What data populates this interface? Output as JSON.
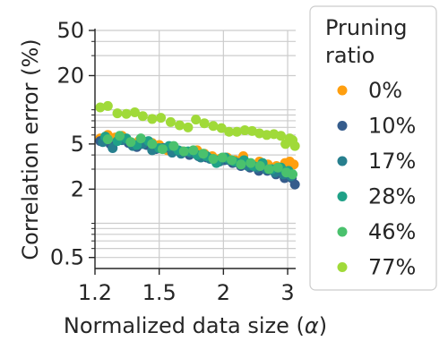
{
  "chart_data": {
    "type": "scatter",
    "xlabel": "Normalized data size (",
    "xlabel_symbol": "α",
    "xlabel_close": ")",
    "ylabel": "Correlation error (%)",
    "x_scale": "reciprocal",
    "y_scale": "log",
    "xlim": [
      1.2,
      3.2
    ],
    "ylim": [
      0.4,
      50
    ],
    "x_ticks": [
      1.2,
      1.5,
      2,
      3
    ],
    "x_tick_labels": [
      "1.2",
      "1.5",
      "2",
      "3"
    ],
    "y_ticks": [
      0.5,
      2,
      5,
      20,
      50
    ],
    "y_tick_labels": [
      "0.5",
      "2",
      "5",
      "20",
      "50"
    ],
    "y_minor_ticks": [
      0.6,
      0.7,
      0.8,
      0.9,
      1,
      3,
      4,
      6,
      7,
      8,
      9,
      10,
      30,
      40
    ],
    "grid": true,
    "legend": {
      "title_line1": "Pruning",
      "title_line2": "ratio",
      "placement": "outside-right",
      "entries": [
        "0%",
        "10%",
        "17%",
        "28%",
        "46%",
        "77%"
      ]
    },
    "series": [
      {
        "name": "0%",
        "color": "#ff9f0f",
        "x": [
          1.22,
          1.25,
          1.28,
          1.31,
          1.35,
          1.39,
          1.42,
          1.46,
          1.5,
          1.55,
          1.6,
          1.65,
          1.7,
          1.76,
          1.82,
          1.89,
          1.96,
          2.04,
          2.13,
          2.23,
          2.34,
          2.46,
          2.6,
          2.76,
          2.94,
          3.05,
          3.15
        ],
        "y": [
          5.6,
          6.0,
          5.7,
          5.9,
          5.2,
          5.3,
          5.0,
          5.1,
          4.9,
          4.4,
          4.5,
          4.3,
          4.2,
          4.4,
          4.1,
          3.9,
          3.7,
          3.8,
          3.6,
          3.9,
          3.3,
          3.5,
          3.3,
          3.2,
          3.4,
          3.5,
          3.3
        ]
      },
      {
        "name": "10%",
        "color": "#355c8c",
        "x": [
          1.22,
          1.26,
          1.3,
          1.34,
          1.38,
          1.43,
          1.48,
          1.53,
          1.58,
          1.64,
          1.7,
          1.77,
          1.84,
          1.92,
          2.01,
          2.1,
          2.2,
          2.32,
          2.45,
          2.59,
          2.75,
          2.93,
          3.1,
          3.18
        ],
        "y": [
          5.3,
          5.0,
          5.5,
          5.1,
          4.7,
          4.9,
          4.5,
          4.6,
          4.2,
          4.3,
          4.0,
          3.9,
          3.8,
          3.6,
          3.6,
          3.4,
          3.2,
          3.1,
          2.9,
          2.9,
          2.7,
          2.5,
          2.5,
          2.2
        ]
      },
      {
        "name": "17%",
        "color": "#277f8e",
        "x": [
          1.23,
          1.27,
          1.31,
          1.36,
          1.41,
          1.46,
          1.52,
          1.58,
          1.64,
          1.71,
          1.79,
          1.87,
          1.96,
          2.06,
          2.17,
          2.29,
          2.42,
          2.57,
          2.73,
          2.91,
          3.08
        ],
        "y": [
          5.2,
          4.6,
          5.4,
          4.8,
          5.0,
          4.4,
          4.6,
          4.2,
          4.1,
          4.2,
          3.8,
          3.7,
          3.5,
          3.6,
          3.4,
          3.2,
          3.1,
          3.0,
          2.8,
          2.7,
          2.6
        ]
      },
      {
        "name": "28%",
        "color": "#1fa187",
        "x": [
          1.24,
          1.29,
          1.33,
          1.38,
          1.44,
          1.5,
          1.56,
          1.62,
          1.69,
          1.76,
          1.84,
          1.93,
          2.02,
          2.12,
          2.24,
          2.37,
          2.51,
          2.67,
          2.85,
          3.02
        ],
        "y": [
          5.8,
          5.3,
          5.6,
          4.9,
          5.3,
          4.6,
          4.8,
          4.4,
          4.3,
          4.0,
          3.9,
          3.4,
          3.8,
          3.5,
          3.6,
          3.2,
          3.4,
          3.0,
          3.1,
          2.9
        ]
      },
      {
        "name": "46%",
        "color": "#4ac16d",
        "x": [
          1.25,
          1.3,
          1.35,
          1.4,
          1.46,
          1.52,
          1.59,
          1.66,
          1.73,
          1.81,
          1.9,
          1.99,
          2.09,
          2.2,
          2.33,
          2.47,
          2.62,
          2.79,
          2.97,
          3.12
        ],
        "y": [
          5.5,
          5.9,
          5.2,
          5.6,
          5.0,
          4.5,
          4.8,
          4.3,
          4.4,
          4.1,
          3.7,
          3.8,
          3.6,
          3.3,
          3.4,
          3.2,
          3.0,
          3.1,
          2.8,
          2.7
        ]
      },
      {
        "name": "77%",
        "color": "#a0da39",
        "x": [
          1.22,
          1.25,
          1.29,
          1.33,
          1.37,
          1.41,
          1.46,
          1.51,
          1.57,
          1.63,
          1.69,
          1.75,
          1.82,
          1.9,
          1.98,
          2.06,
          2.15,
          2.25,
          2.35,
          2.46,
          2.58,
          2.71,
          2.85,
          2.95,
          3.05,
          3.12,
          3.18
        ],
        "y": [
          10.5,
          10.8,
          9.3,
          9.2,
          9.5,
          8.8,
          8.3,
          8.5,
          7.8,
          7.3,
          7.0,
          8.2,
          7.6,
          7.2,
          6.9,
          6.4,
          6.4,
          6.6,
          6.5,
          6.2,
          6.0,
          6.1,
          5.9,
          5.0,
          5.6,
          5.4,
          4.8
        ]
      }
    ]
  }
}
